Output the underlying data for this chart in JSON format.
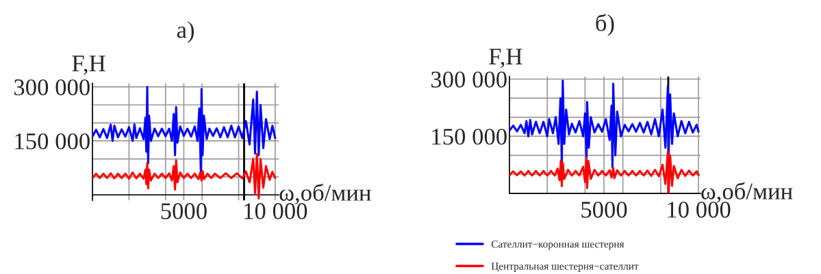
{
  "chart_data": [
    {
      "type": "line",
      "title": "а)",
      "ylabel": "F,Н",
      "xlabel": "ω,об/мин",
      "xlim": [
        0,
        10200
      ],
      "ylim": [
        -15000,
        310000
      ],
      "xticks": [
        {
          "value": 0,
          "label": null
        },
        {
          "value": 2000,
          "label": null
        },
        {
          "value": 4000,
          "label": null
        },
        5000,
        {
          "value": 6000,
          "label": null
        },
        {
          "value": 8000,
          "label": null
        },
        {
          "value": 10000,
          "label": "10 000"
        }
      ],
      "yticks": [
        {
          "value": 0,
          "label": null
        },
        {
          "value": 50000,
          "label": null
        },
        {
          "value": 100000,
          "label": null
        },
        {
          "value": 150000,
          "label": "150 000"
        },
        {
          "value": 200000,
          "label": null
        },
        {
          "value": 250000,
          "label": null
        },
        {
          "value": 300000,
          "label": "300 000"
        }
      ],
      "grid": true,
      "legend": false,
      "line_style": "solid",
      "ref_lines": [
        {
          "axis": "x",
          "value": 8300,
          "color": "#000000"
        }
      ],
      "series": [
        {
          "color": "#0000ff",
          "x": [
            0,
            200,
            400,
            600,
            800,
            1000,
            1100,
            1200,
            1400,
            1600,
            1800,
            2000,
            2200,
            2300,
            2400,
            2600,
            2800,
            2900,
            2950,
            3000,
            3050,
            3100,
            3200,
            3400,
            3600,
            3800,
            4000,
            4200,
            4350,
            4450,
            4520,
            4580,
            4650,
            4800,
            5000,
            5200,
            5400,
            5600,
            5750,
            5850,
            5930,
            5970,
            6030,
            6100,
            6250,
            6400,
            6600,
            6800,
            7000,
            7200,
            7400,
            7600,
            7800,
            8000,
            8200,
            8400,
            8600,
            8800,
            8900,
            9000,
            9100,
            9200,
            9350,
            9500,
            9700,
            9850,
            10000
          ],
          "values": [
            162000,
            181000,
            160000,
            183000,
            158000,
            195000,
            150000,
            192000,
            160000,
            182000,
            162000,
            188000,
            150000,
            196000,
            158000,
            185000,
            155000,
            215000,
            120000,
            300000,
            88000,
            220000,
            150000,
            184000,
            163000,
            184000,
            163000,
            184000,
            150000,
            225000,
            110000,
            244000,
            145000,
            190000,
            164000,
            184000,
            162000,
            190000,
            150000,
            240000,
            66000,
            294000,
            110000,
            220000,
            155000,
            184000,
            164000,
            185000,
            160000,
            188000,
            160000,
            192000,
            160000,
            190000,
            158000,
            205000,
            140000,
            265000,
            115000,
            287000,
            110000,
            250000,
            130000,
            210000,
            155000,
            192000,
            158000
          ]
        },
        {
          "color": "#ff0000",
          "x": [
            0,
            200,
            400,
            600,
            800,
            1000,
            1200,
            1400,
            1600,
            1800,
            2000,
            2200,
            2400,
            2600,
            2800,
            2900,
            2950,
            3000,
            3050,
            3100,
            3200,
            3400,
            3600,
            3800,
            4000,
            4200,
            4350,
            4450,
            4520,
            4580,
            4650,
            4800,
            5000,
            5200,
            5400,
            5600,
            5800,
            5900,
            5970,
            6030,
            6100,
            6300,
            6500,
            6700,
            7000,
            7300,
            7600,
            7900,
            8200,
            8400,
            8600,
            8800,
            8900,
            9000,
            9100,
            9200,
            9350,
            9500,
            9700,
            9850,
            10000
          ],
          "values": [
            47000,
            59000,
            47000,
            59000,
            47000,
            60000,
            46000,
            59000,
            47000,
            59000,
            45000,
            62000,
            46000,
            59000,
            45000,
            70000,
            30000,
            88000,
            18000,
            70000,
            40000,
            59000,
            47000,
            59000,
            47000,
            60000,
            40000,
            80000,
            15000,
            96000,
            35000,
            62000,
            47000,
            59000,
            47000,
            59000,
            44000,
            62000,
            40000,
            66000,
            44000,
            59000,
            47000,
            59000,
            47000,
            60000,
            47000,
            60000,
            46000,
            65000,
            35000,
            100000,
            5000,
            114000,
            -10000,
            100000,
            20000,
            80000,
            42000,
            64000,
            47000
          ]
        }
      ]
    },
    {
      "type": "line",
      "title": "б)",
      "ylabel": "F,Н",
      "xlabel": "ω,об/мин",
      "xlim": [
        0,
        10100
      ],
      "ylim": [
        0,
        307000
      ],
      "xticks": [
        {
          "value": 0,
          "label": null
        },
        {
          "value": 2000,
          "label": null
        },
        {
          "value": 4000,
          "label": null
        },
        5000,
        {
          "value": 6000,
          "label": null
        },
        {
          "value": 8000,
          "label": null
        },
        {
          "value": 10000,
          "label": "10 000"
        }
      ],
      "yticks": [
        {
          "value": 0,
          "label": null
        },
        {
          "value": 50000,
          "label": null
        },
        {
          "value": 100000,
          "label": null
        },
        {
          "value": 150000,
          "label": "150 000"
        },
        {
          "value": 200000,
          "label": null
        },
        {
          "value": 250000,
          "label": null
        },
        {
          "value": 300000,
          "label": "300 000"
        }
      ],
      "grid": true,
      "legend": "bottom",
      "line_style": "solid",
      "ref_lines": [
        {
          "axis": "x",
          "value": 8400,
          "color": "#000000"
        }
      ],
      "series": [
        {
          "name": "Сателлит−коронная шестерня",
          "color": "#0000ff",
          "x": [
            0,
            200,
            400,
            600,
            800,
            900,
            1000,
            1100,
            1200,
            1400,
            1600,
            1800,
            2000,
            2100,
            2300,
            2450,
            2600,
            2700,
            2770,
            2820,
            2900,
            3000,
            3150,
            3300,
            3500,
            3700,
            3900,
            4000,
            4080,
            4110,
            4200,
            4300,
            4500,
            4700,
            4900,
            5100,
            5300,
            5400,
            5450,
            5490,
            5600,
            5700,
            5900,
            6100,
            6300,
            6500,
            6700,
            6900,
            7100,
            7300,
            7500,
            7700,
            7900,
            8100,
            8250,
            8380,
            8420,
            8500,
            8600,
            8700,
            8900,
            9100,
            9300,
            9500,
            9700,
            9900,
            10000
          ],
          "values": [
            165000,
            178000,
            163000,
            180000,
            158000,
            190000,
            150000,
            193000,
            155000,
            188000,
            158000,
            188000,
            150000,
            195000,
            158000,
            200000,
            130000,
            250000,
            82000,
            296000,
            130000,
            220000,
            155000,
            183000,
            160000,
            190000,
            150000,
            210000,
            96000,
            240000,
            120000,
            200000,
            160000,
            182000,
            162000,
            195000,
            140000,
            230000,
            68000,
            288000,
            100000,
            215000,
            150000,
            180000,
            163000,
            182000,
            162000,
            185000,
            160000,
            188000,
            155000,
            195000,
            150000,
            220000,
            120000,
            281000,
            103000,
            260000,
            130000,
            210000,
            150000,
            190000,
            158000,
            188000,
            160000,
            180000,
            162000
          ]
        },
        {
          "name": "Центральная шестерня−сателлит",
          "color": "#ff0000",
          "x": [
            0,
            200,
            400,
            600,
            800,
            1000,
            1200,
            1400,
            1600,
            1800,
            2000,
            2200,
            2400,
            2550,
            2650,
            2720,
            2770,
            2820,
            2900,
            3100,
            3300,
            3500,
            3700,
            3900,
            4000,
            4080,
            4110,
            4180,
            4300,
            4500,
            4700,
            4900,
            5100,
            5300,
            5400,
            5490,
            5550,
            5700,
            5900,
            6100,
            6300,
            6500,
            6700,
            6900,
            7100,
            7300,
            7500,
            7700,
            7900,
            8100,
            8250,
            8380,
            8420,
            8500,
            8600,
            8700,
            8900,
            9100,
            9300,
            9500,
            9700,
            9900,
            10000
          ],
          "values": [
            48000,
            58000,
            48000,
            58000,
            47000,
            59000,
            47000,
            59000,
            47000,
            59000,
            47000,
            59000,
            47000,
            65000,
            35000,
            86000,
            19000,
            80000,
            38000,
            62000,
            47000,
            59000,
            47000,
            70000,
            30000,
            92000,
            14000,
            85000,
            38000,
            62000,
            47000,
            59000,
            47000,
            61000,
            42000,
            67000,
            40000,
            61000,
            47000,
            59000,
            47000,
            59000,
            47000,
            59000,
            47000,
            60000,
            46000,
            62000,
            45000,
            75000,
            25000,
            110000,
            0,
            100000,
            20000,
            72000,
            40000,
            62000,
            46000,
            60000,
            47000,
            58000,
            48000
          ]
        }
      ]
    }
  ]
}
